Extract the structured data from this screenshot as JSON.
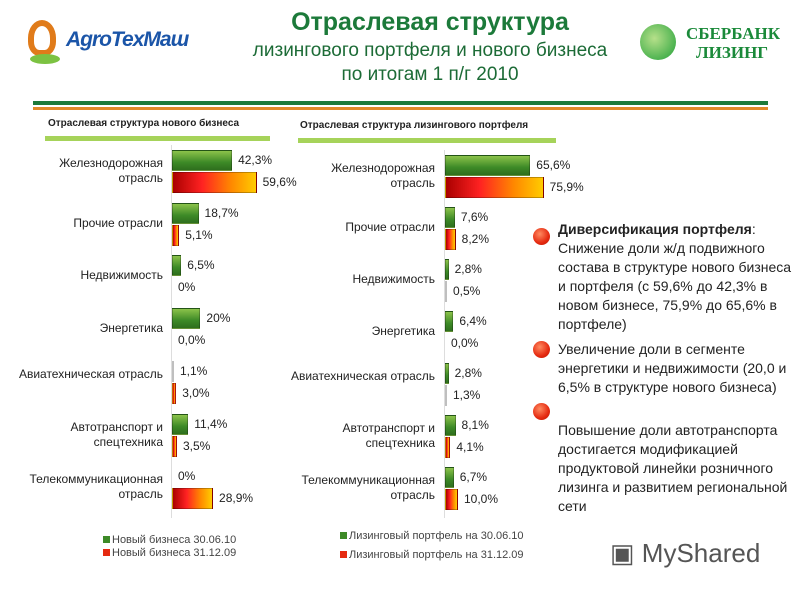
{
  "header": {
    "title": "Отраслевая структура",
    "subtitle_line1": "лизингового портфеля и нового бизнеса",
    "subtitle_line2": "по итогам 1 п/г 2010",
    "logo_left": "AgroTexMaш",
    "logo_right_line1": "СБЕРБАНК",
    "logo_right_line2": "ЛИЗИНГ"
  },
  "colors": {
    "green": "#3d8a27",
    "red": "#e52a10",
    "orange": "#f80",
    "header_green": "#1c7a3a",
    "header_orange": "#e08a2a"
  },
  "chart_data": [
    {
      "type": "bar",
      "orientation": "horizontal",
      "title": "Отраслевая структура нового бизнеса",
      "categories": [
        "Железнодорожная отрасль",
        "Прочие отрасли",
        "Недвижимость",
        "Энергетика",
        "Авиатехническая отрасль",
        "Автотранспорт и спецтехника",
        "Телекоммуникационная отрасль"
      ],
      "series": [
        {
          "name": "Новый бизнес на 30.06.10",
          "values": [
            42.3,
            18.7,
            6.5,
            20,
            1.1,
            11.4,
            0
          ],
          "labels": [
            "42,3%",
            "18,7%",
            "6,5%",
            "20%",
            "1,1%",
            "11,4%",
            "0%"
          ]
        },
        {
          "name": "Новый бизнес на 31.12.09",
          "values": [
            59.6,
            5.1,
            0,
            0,
            3.0,
            3.5,
            28.9
          ],
          "labels": [
            "59,6%",
            "5,1%",
            "0%",
            "0,0%",
            "3,0%",
            "3,5%",
            "28,9%"
          ]
        }
      ],
      "legend_labels": [
        "Новый бизнеса 30.06.10",
        "Новый бизнеса 31.12.09"
      ],
      "legend": "bottom"
    },
    {
      "type": "bar",
      "orientation": "horizontal",
      "title": "Отраслевая структура лизингового портфеля",
      "categories": [
        "Железнодорожная отрасль",
        "Прочие отрасли",
        "Недвижимость",
        "Энергетика",
        "Авиатехническая отрасль",
        "Автотранспорт и спецтехника",
        "Телекоммуникационная отрасль"
      ],
      "series": [
        {
          "name": "Лизинговый портфель на 30.06.10",
          "values": [
            65.6,
            7.6,
            2.8,
            6.4,
            2.8,
            8.1,
            6.7
          ],
          "labels": [
            "65,6%",
            "7,6%",
            "2,8%",
            "6,4%",
            "2,8%",
            "8,1%",
            "6,7%"
          ]
        },
        {
          "name": "Лизинговый портфель на 31.12.09",
          "values": [
            75.9,
            8.2,
            0.5,
            0.0,
            1.3,
            4.1,
            10.0
          ],
          "labels": [
            "75,9%",
            "8,2%",
            "0,5%",
            "0,0%",
            "1,3%",
            "4,1%",
            "10,0%"
          ]
        }
      ],
      "legend_labels": [
        "Лизинговый портфель на 30.06.10",
        "Лизинговый портфель на 31.12.09"
      ],
      "legend": "bottom"
    }
  ],
  "bullets": [
    {
      "bold": "Диверсификация портфеля",
      "text": ": Снижение доли ж/д подвижного состава в структуре нового бизнеса  и портфеля (с 59,6% до 42,3% в новом бизнесе, 75,9% до 65,6% в портфеле)"
    },
    {
      "bold": "",
      "text": "Увеличение доли в сегменте энергетики и недвижимости (20,0 и 6,5% в структуре нового бизнеса)"
    },
    {
      "bold": "",
      "text": "Повышение доли автотранспорта достигается модификацией продуктовой линейки розничного лизинга и развитием региональной сети"
    }
  ],
  "watermark": "MyShared"
}
